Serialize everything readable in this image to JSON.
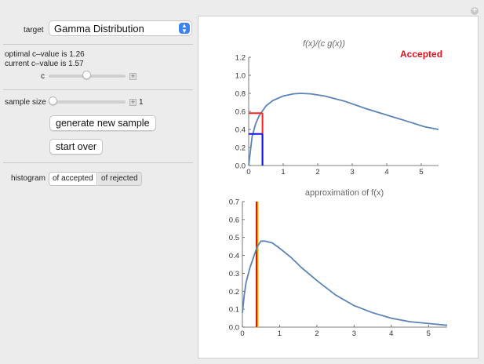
{
  "controls": {
    "target_label": "target",
    "target_value": "Gamma Distribution",
    "optimal_text": "optimal c–value is 1.26",
    "current_text": "current c–value is 1.57",
    "c_label": "c",
    "c_slider_fraction": 0.5,
    "sample_label": "sample size",
    "sample_value": "1",
    "sample_slider_fraction": 0.0,
    "generate_button": "generate new sample",
    "start_over_button": "start over",
    "histogram_label": "histogram",
    "histogram_options": [
      "of accepted",
      "of rejected"
    ],
    "histogram_selected": "of accepted"
  },
  "icons": {
    "select_arrow": "up-down-chevron-icon",
    "slider_plus": "plus-icon",
    "corner_plus": "plus-circle-icon"
  },
  "colors": {
    "curve": "#5b84b6",
    "accepted_text": "#e8101a",
    "accept_bar": "#ff2020",
    "reject_bar": "#1010e0",
    "hist_red": "#d01010",
    "hist_gold": "#e8a800",
    "hist_peach": "#f6c89a",
    "select_accent": "#3a82f7"
  },
  "chart_data": [
    {
      "type": "line",
      "title": "f(x)/(c g(x))",
      "status_text": "Accepted",
      "xlim": [
        0,
        5.5
      ],
      "ylim": [
        0,
        1.2
      ],
      "x_ticks": [
        "0",
        "1",
        "2",
        "3",
        "4",
        "5"
      ],
      "y_ticks": [
        "0.0",
        "0.2",
        "0.4",
        "0.6",
        "0.8",
        "1.0",
        "1.2"
      ],
      "series": [
        {
          "x": [
            0,
            0.1,
            0.2,
            0.3,
            0.5,
            0.7,
            1.0,
            1.3,
            1.5,
            1.8,
            2.2,
            2.8,
            3.4,
            4.0,
            4.6,
            5.1,
            5.5
          ],
          "values": [
            0,
            0.32,
            0.46,
            0.55,
            0.66,
            0.72,
            0.77,
            0.795,
            0.8,
            0.795,
            0.77,
            0.71,
            0.63,
            0.56,
            0.49,
            0.43,
            0.4
          ]
        }
      ],
      "markers": {
        "x": 0.4,
        "accept_height": 0.58,
        "reject_height": 0.35
      }
    },
    {
      "type": "line",
      "title": "approximation of f(x)",
      "xlim": [
        0,
        5.5
      ],
      "ylim": [
        0,
        0.7
      ],
      "x_ticks": [
        "0",
        "1",
        "2",
        "3",
        "4",
        "5"
      ],
      "y_ticks": [
        "0.0",
        "0.1",
        "0.2",
        "0.3",
        "0.4",
        "0.5",
        "0.6",
        "0.7"
      ],
      "series": [
        {
          "x": [
            0,
            0.05,
            0.1,
            0.2,
            0.3,
            0.4,
            0.5,
            0.6,
            0.8,
            1.0,
            1.3,
            1.6,
            2.0,
            2.5,
            3.0,
            3.5,
            4.0,
            4.5,
            5.0,
            5.5
          ],
          "values": [
            0.08,
            0.18,
            0.25,
            0.33,
            0.39,
            0.45,
            0.48,
            0.48,
            0.47,
            0.44,
            0.39,
            0.33,
            0.26,
            0.18,
            0.12,
            0.08,
            0.05,
            0.03,
            0.02,
            0.01
          ]
        }
      ],
      "histogram_bar": {
        "x_start": 0.36,
        "x_end": 0.44,
        "height": 0.7
      }
    }
  ]
}
